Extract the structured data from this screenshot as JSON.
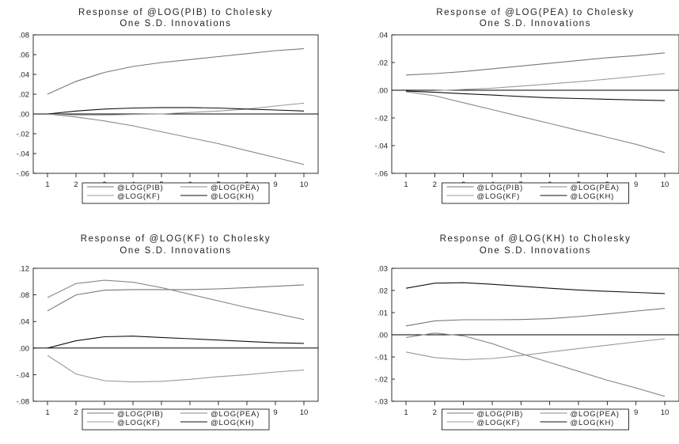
{
  "chart_data": [
    {
      "type": "line",
      "title": "Response of @LOG(PIB) to Cholesky",
      "subtitle": "One S.D. Innovations",
      "x": [
        1,
        2,
        3,
        4,
        5,
        6,
        7,
        8,
        9,
        10
      ],
      "ylim": [
        -0.06,
        0.08
      ],
      "yticks": [
        ".08",
        ".06",
        ".04",
        ".02",
        ".00",
        "-.02",
        "-.04",
        "-.06"
      ],
      "ytick_values": [
        0.08,
        0.06,
        0.04,
        0.02,
        0.0,
        -0.02,
        -0.04,
        -0.06
      ],
      "series": [
        {
          "name": "@LOG(PIB)",
          "color": "#777777",
          "values": [
            0.02,
            0.033,
            0.042,
            0.048,
            0.052,
            0.055,
            0.058,
            0.061,
            0.064,
            0.066
          ]
        },
        {
          "name": "@LOG(PEA)",
          "color": "#888888",
          "values": [
            0.0,
            -0.003,
            -0.007,
            -0.012,
            -0.018,
            -0.024,
            -0.03,
            -0.037,
            -0.044,
            -0.051
          ]
        },
        {
          "name": "@LOG(KF)",
          "color": "#999999",
          "values": [
            0.0,
            -0.001,
            -0.001,
            -0.0005,
            0.0,
            0.0015,
            0.003,
            0.005,
            0.008,
            0.011
          ]
        },
        {
          "name": "@LOG(KH)",
          "color": "#111111",
          "values": [
            0.0,
            0.003,
            0.005,
            0.006,
            0.0065,
            0.0065,
            0.006,
            0.005,
            0.004,
            0.003
          ]
        }
      ],
      "legend": [
        "@LOG(PIB)",
        "@LOG(PEA)",
        "@LOG(KF)",
        "@LOG(KH)"
      ],
      "grid": false,
      "legend_position": "bottom"
    },
    {
      "type": "line",
      "title": "Response of @LOG(PEA) to Cholesky",
      "subtitle": "One S.D. Innovations",
      "x": [
        1,
        2,
        3,
        4,
        5,
        6,
        7,
        8,
        9,
        10
      ],
      "ylim": [
        -0.06,
        0.04
      ],
      "yticks": [
        ".04",
        ".02",
        ".00",
        "-.02",
        "-.04",
        "-.06"
      ],
      "ytick_values": [
        0.04,
        0.02,
        0.0,
        -0.02,
        -0.04,
        -0.06
      ],
      "series": [
        {
          "name": "@LOG(PIB)",
          "color": "#777777",
          "values": [
            0.011,
            0.012,
            0.0135,
            0.0155,
            0.0175,
            0.0195,
            0.0215,
            0.0235,
            0.025,
            0.027
          ]
        },
        {
          "name": "@LOG(PEA)",
          "color": "#888888",
          "values": [
            -0.001,
            -0.004,
            -0.009,
            -0.014,
            -0.019,
            -0.024,
            -0.029,
            -0.034,
            -0.039,
            -0.045
          ]
        },
        {
          "name": "@LOG(KF)",
          "color": "#999999",
          "values": [
            -0.0005,
            -0.0003,
            0.0005,
            0.0015,
            0.003,
            0.0045,
            0.0062,
            0.008,
            0.01,
            0.012
          ]
        },
        {
          "name": "@LOG(KH)",
          "color": "#111111",
          "values": [
            -0.0005,
            -0.0015,
            -0.0025,
            -0.0035,
            -0.0045,
            -0.0055,
            -0.006,
            -0.0065,
            -0.007,
            -0.0075
          ]
        }
      ],
      "legend": [
        "@LOG(PIB)",
        "@LOG(PEA)",
        "@LOG(KF)",
        "@LOG(KH)"
      ],
      "grid": false,
      "legend_position": "bottom"
    },
    {
      "type": "line",
      "title": "Response of @LOG(KF) to Cholesky",
      "subtitle": "One S.D. Innovations",
      "x": [
        1,
        2,
        3,
        4,
        5,
        6,
        7,
        8,
        9,
        10
      ],
      "ylim": [
        -0.08,
        0.12
      ],
      "yticks": [
        ".12",
        ".08",
        ".04",
        ".00",
        "-.04",
        "-.08"
      ],
      "ytick_values": [
        0.12,
        0.08,
        0.04,
        0.0,
        -0.04,
        -0.08
      ],
      "series": [
        {
          "name": "@LOG(PIB)",
          "color": "#777777",
          "values": [
            0.056,
            0.08,
            0.087,
            0.088,
            0.088,
            0.088,
            0.089,
            0.091,
            0.093,
            0.095
          ]
        },
        {
          "name": "@LOG(PEA)",
          "color": "#888888",
          "values": [
            0.076,
            0.097,
            0.102,
            0.099,
            0.091,
            0.081,
            0.071,
            0.061,
            0.052,
            0.043
          ]
        },
        {
          "name": "@LOG(KF)",
          "color": "#999999",
          "values": [
            -0.011,
            -0.039,
            -0.049,
            -0.051,
            -0.05,
            -0.047,
            -0.043,
            -0.04,
            -0.036,
            -0.033
          ]
        },
        {
          "name": "@LOG(KH)",
          "color": "#111111",
          "values": [
            0.0,
            0.011,
            0.017,
            0.018,
            0.016,
            0.014,
            0.012,
            0.01,
            0.008,
            0.007
          ]
        }
      ],
      "legend": [
        "@LOG(PIB)",
        "@LOG(PEA)",
        "@LOG(KF)",
        "@LOG(KH)"
      ],
      "grid": false,
      "legend_position": "bottom"
    },
    {
      "type": "line",
      "title": "Response of @LOG(KH) to Cholesky",
      "subtitle": "One S.D. Innovations",
      "x": [
        1,
        2,
        3,
        4,
        5,
        6,
        7,
        8,
        9,
        10
      ],
      "ylim": [
        -0.03,
        0.03
      ],
      "yticks": [
        ".03",
        ".02",
        ".01",
        ".00",
        "-.01",
        "-.02",
        "-.03"
      ],
      "ytick_values": [
        0.03,
        0.02,
        0.01,
        0.0,
        -0.01,
        -0.02,
        -0.03
      ],
      "series": [
        {
          "name": "@LOG(PIB)",
          "color": "#777777",
          "values": [
            0.004,
            0.0063,
            0.0068,
            0.0068,
            0.0069,
            0.0073,
            0.0082,
            0.0094,
            0.0107,
            0.0119
          ]
        },
        {
          "name": "@LOG(PEA)",
          "color": "#888888",
          "values": [
            -0.0012,
            0.0008,
            -0.0005,
            -0.004,
            -0.0085,
            -0.0125,
            -0.0165,
            -0.0205,
            -0.024,
            -0.0278
          ]
        },
        {
          "name": "@LOG(KF)",
          "color": "#999999",
          "values": [
            -0.0078,
            -0.0103,
            -0.0112,
            -0.0107,
            -0.0094,
            -0.0078,
            -0.0062,
            -0.0047,
            -0.0032,
            -0.0018
          ]
        },
        {
          "name": "@LOG(KH)",
          "color": "#111111",
          "values": [
            0.021,
            0.0233,
            0.0235,
            0.0228,
            0.0219,
            0.021,
            0.0202,
            0.0196,
            0.0191,
            0.0186
          ]
        }
      ],
      "legend": [
        "@LOG(PIB)",
        "@LOG(PEA)",
        "@LOG(KF)",
        "@LOG(KH)"
      ],
      "grid": false,
      "legend_position": "bottom"
    }
  ]
}
